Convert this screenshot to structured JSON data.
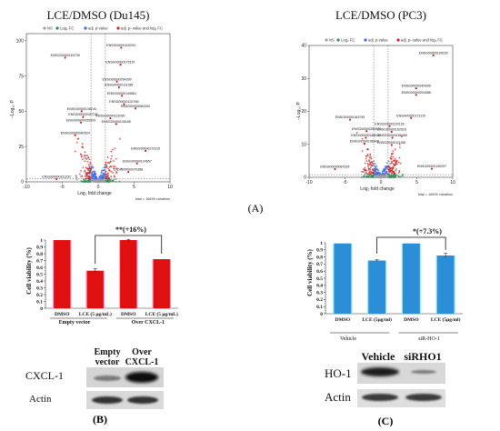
{
  "panel_labels": {
    "a": "(A)",
    "b": "(B)",
    "c": "(C)"
  },
  "colors": {
    "ns": "#9e9e9e",
    "fc": "#2e8b57",
    "p": "#4169e1",
    "pfc": "#cc2222",
    "bar_red": "#e01010",
    "bar_red_edge": "#ff9fd0",
    "bar_blue": "#2a8fd6",
    "bar_blue_edge": "#9fe8f0"
  },
  "chart_data": [
    {
      "type": "scatter",
      "title": "LCE/DMSO (Du145)",
      "xlabel": "Log₂ fold change",
      "ylabel": "−Log₁₀ P",
      "xlim": [
        -10,
        10
      ],
      "ylim": [
        0,
        105
      ],
      "xticks": [
        -10,
        -5,
        0,
        5,
        10
      ],
      "yticks": [
        0,
        25,
        50,
        75,
        100
      ],
      "legend": [
        "NS",
        "Log₂ FC",
        "adj. p-value",
        "adj. p−value and log₂ FC"
      ],
      "caption": "total = 16699 variables",
      "labeled_points": [
        {
          "label": "ENSG00000100292",
          "x": 3.2,
          "y": 95
        },
        {
          "label": "ENSG00000163739",
          "x": -4.6,
          "y": 88
        },
        {
          "label": "ENSG00000175197",
          "x": 3.1,
          "y": 83
        },
        {
          "label": "ENSG00000264399",
          "x": 2.6,
          "y": 71
        },
        {
          "label": "ENSG00000111981",
          "x": 2.9,
          "y": 67
        },
        {
          "label": "ENSG00000149861",
          "x": 3.3,
          "y": 61
        },
        {
          "label": "ENSG00000132768",
          "x": 3.6,
          "y": 55
        },
        {
          "label": "ENSG00000064300",
          "x": 5.2,
          "y": 52
        },
        {
          "label": "ENSG00000138244",
          "x": -2.3,
          "y": 50
        },
        {
          "label": "ENSG00000020738",
          "x": -2.1,
          "y": 46
        },
        {
          "label": "ENSG00000112099",
          "x": 1.7,
          "y": 45
        },
        {
          "label": "ENSG00000055009",
          "x": -2.4,
          "y": 42
        },
        {
          "label": "ENSG00000128165",
          "x": 2.5,
          "y": 41
        },
        {
          "label": "ENSG00000087624",
          "x": -3.2,
          "y": 33
        },
        {
          "label": "ENSG00000173110",
          "x": 6.6,
          "y": 22
        },
        {
          "label": "ENSG00000124657",
          "x": 5.4,
          "y": 13
        },
        {
          "label": "ENSG00000070388",
          "x": 4.2,
          "y": 7
        },
        {
          "label": "ENSG00000111332",
          "x": -5.8,
          "y": 2
        }
      ]
    },
    {
      "type": "scatter",
      "title": "LCE/DMSO (PC3)",
      "xlabel": "Log₂ fold change",
      "ylabel": "−Log₁₀ P",
      "xlim": [
        -10,
        10
      ],
      "ylim": [
        0,
        40
      ],
      "xticks": [
        -10,
        -5,
        0,
        5,
        10
      ],
      "yticks": [
        0,
        10,
        20,
        30,
        40
      ],
      "legend": [
        "NS",
        "Log₂ FC",
        "adj. p-value",
        "adj. p−value and log₂ FC"
      ],
      "caption": "total = 16699 variables",
      "labeled_points": [
        {
          "label": "ENSG00000100292",
          "x": 7.3,
          "y": 37
        },
        {
          "label": "ENSG00000264399",
          "x": 4.9,
          "y": 27
        },
        {
          "label": "ENSG00000204388",
          "x": 4.9,
          "y": 25
        },
        {
          "label": "ENSG00000173110",
          "x": 4.2,
          "y": 18
        },
        {
          "label": "ENSG00000163739",
          "x": -4.3,
          "y": 17.5
        },
        {
          "label": "ENSG00000120129",
          "x": 1.2,
          "y": 15.5
        },
        {
          "label": "ENSG00000265972",
          "x": -2.0,
          "y": 14
        },
        {
          "label": "ENSG00000162616",
          "x": 1.5,
          "y": 13.8
        },
        {
          "label": "ENSG00000188636",
          "x": -2.1,
          "y": 12
        },
        {
          "label": "ENSG00000185495",
          "x": 1.6,
          "y": 12
        },
        {
          "label": "ENSG00000196840",
          "x": -2.3,
          "y": 10.2
        },
        {
          "label": "ENSG00000111981",
          "x": 1.5,
          "y": 9.8
        },
        {
          "label": "ENSG00000087624",
          "x": -6.4,
          "y": 2.5
        },
        {
          "label": "ENSG00000140297",
          "x": 7.1,
          "y": 2.6
        }
      ]
    },
    {
      "type": "bar",
      "ylabel": "Cell viability (%)",
      "ylim": [
        0,
        1
      ],
      "yticks": [
        0,
        0.1,
        0.2,
        0.3,
        0.4,
        0.5,
        0.6,
        0.7,
        0.8,
        0.9,
        1
      ],
      "categories": [
        "DMSO",
        "LCE (5 μg/mL)",
        "DMSO",
        "LCE (5 μg/mL)"
      ],
      "groups": [
        "Empty vector",
        "Over CXCL-1"
      ],
      "values": [
        1.0,
        0.55,
        1.0,
        0.72
      ],
      "errors": [
        0.0,
        0.03,
        0.01,
        0.0
      ],
      "annotation": "**(+16%)"
    },
    {
      "type": "bar",
      "ylabel": "Cell viability (%)",
      "ylim": [
        0,
        1
      ],
      "yticks": [
        0,
        0.1,
        0.2,
        0.3,
        0.4,
        0.5,
        0.6,
        0.7,
        0.8,
        0.9,
        1
      ],
      "categories": [
        "DMSO",
        "LCE (5μg/ml)",
        "DMSO",
        "LCE (5μg/ml)"
      ],
      "groups": [
        "Vehicle",
        "siR-HO-1"
      ],
      "values": [
        0.99,
        0.75,
        0.99,
        0.82
      ],
      "errors": [
        0.0,
        0.01,
        0.0,
        0.03
      ],
      "annotation": "*(+7.3%)"
    }
  ],
  "blot_b": {
    "header_left": [
      "Empty",
      "vector"
    ],
    "header_right": [
      "Over",
      "CXCL-1"
    ],
    "rows": [
      "CXCL-1",
      "Actin"
    ]
  },
  "blot_c": {
    "header_left": "Vehicle",
    "header_right": "siRHO1",
    "rows": [
      "HO-1",
      "Actin"
    ]
  }
}
